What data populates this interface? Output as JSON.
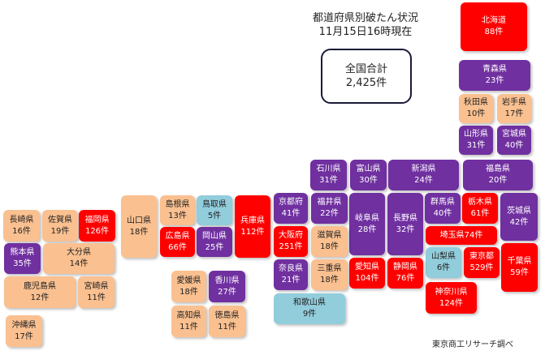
{
  "title": {
    "line1": "都道府県別破たん状況",
    "line2": "11月15日16時現在"
  },
  "total": {
    "label": "全国合計",
    "value": "2,425件"
  },
  "credit": "東京商工リサーチ調べ",
  "colors": {
    "red": "#ff0000",
    "purple": "#7030a0",
    "peach": "#fac090",
    "blue": "#92cddc"
  },
  "prefectures": [
    {
      "name": "北海道",
      "count": "88件",
      "color": "red"
    },
    {
      "name": "青森県",
      "count": "23件",
      "color": "purple"
    },
    {
      "name": "秋田県",
      "count": "10件",
      "color": "peach"
    },
    {
      "name": "岩手県",
      "count": "17件",
      "color": "peach"
    },
    {
      "name": "山形県",
      "count": "31件",
      "color": "purple"
    },
    {
      "name": "宮城県",
      "count": "40件",
      "color": "purple"
    },
    {
      "name": "石川県",
      "count": "31件",
      "color": "purple"
    },
    {
      "name": "富山県",
      "count": "30件",
      "color": "purple"
    },
    {
      "name": "新潟県",
      "count": "24件",
      "color": "purple"
    },
    {
      "name": "福島県",
      "count": "20件",
      "color": "purple"
    },
    {
      "name": "京都府",
      "count": "41件",
      "color": "purple"
    },
    {
      "name": "福井県",
      "count": "22件",
      "color": "purple"
    },
    {
      "name": "岐阜県",
      "count": "28件",
      "color": "purple"
    },
    {
      "name": "長野県",
      "count": "32件",
      "color": "purple"
    },
    {
      "name": "群馬県",
      "count": "40件",
      "color": "purple"
    },
    {
      "name": "栃木県",
      "count": "61件",
      "color": "red"
    },
    {
      "name": "茨城県",
      "count": "42件",
      "color": "purple"
    },
    {
      "name": "大阪府",
      "count": "251件",
      "color": "red"
    },
    {
      "name": "滋賀県",
      "count": "18件",
      "color": "peach"
    },
    {
      "name": "埼玉県",
      "count": "74件",
      "color": "red"
    },
    {
      "name": "山梨県",
      "count": "6件",
      "color": "blue"
    },
    {
      "name": "東京都",
      "count": "529件",
      "color": "red"
    },
    {
      "name": "千葉県",
      "count": "59件",
      "color": "red"
    },
    {
      "name": "奈良県",
      "count": "21件",
      "color": "purple"
    },
    {
      "name": "三重県",
      "count": "18件",
      "color": "peach"
    },
    {
      "name": "愛知県",
      "count": "104件",
      "color": "red"
    },
    {
      "name": "静岡県",
      "count": "76件",
      "color": "red"
    },
    {
      "name": "神奈川県",
      "count": "124件",
      "color": "red"
    },
    {
      "name": "和歌山県",
      "count": "9件",
      "color": "blue"
    },
    {
      "name": "長崎県",
      "count": "16件",
      "color": "peach"
    },
    {
      "name": "佐賀県",
      "count": "19件",
      "color": "peach"
    },
    {
      "name": "福岡県",
      "count": "126件",
      "color": "red"
    },
    {
      "name": "熊本県",
      "count": "35件",
      "color": "purple"
    },
    {
      "name": "大分県",
      "count": "14件",
      "color": "peach"
    },
    {
      "name": "鹿児島県",
      "count": "12件",
      "color": "peach"
    },
    {
      "name": "宮崎県",
      "count": "11件",
      "color": "peach"
    },
    {
      "name": "沖縄県",
      "count": "17件",
      "color": "peach"
    },
    {
      "name": "山口県",
      "count": "18件",
      "color": "peach"
    },
    {
      "name": "島根県",
      "count": "13件",
      "color": "peach"
    },
    {
      "name": "鳥取県",
      "count": "5件",
      "color": "blue"
    },
    {
      "name": "兵庫県",
      "count": "112件",
      "color": "red"
    },
    {
      "name": "広島県",
      "count": "66件",
      "color": "red"
    },
    {
      "name": "岡山県",
      "count": "25件",
      "color": "purple"
    },
    {
      "name": "愛媛県",
      "count": "18件",
      "color": "peach"
    },
    {
      "name": "香川県",
      "count": "27件",
      "color": "purple"
    },
    {
      "name": "高知県",
      "count": "11件",
      "color": "peach"
    },
    {
      "name": "徳島県",
      "count": "11件",
      "color": "peach"
    }
  ]
}
